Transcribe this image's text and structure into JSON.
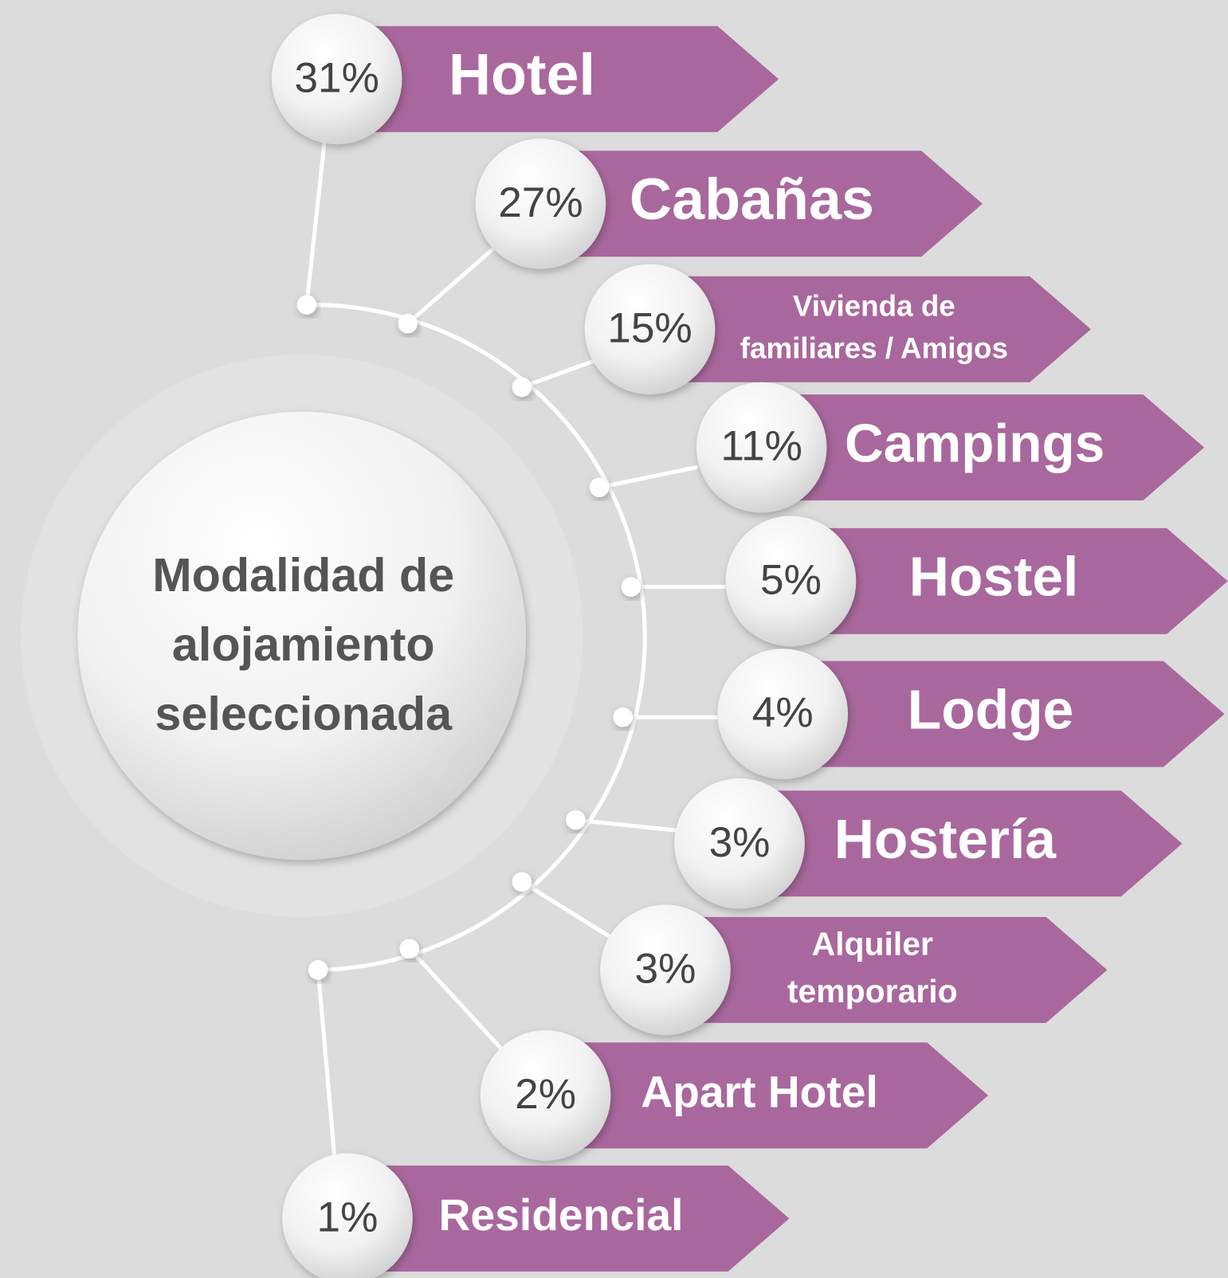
{
  "center": {
    "lines": [
      "Modalidad de",
      "alojamiento",
      "seleccionada"
    ]
  },
  "items": [
    {
      "percent": "31%",
      "label": [
        "Hotel"
      ]
    },
    {
      "percent": "27%",
      "label": [
        "Cabañas"
      ]
    },
    {
      "percent": "15%",
      "label": [
        "Vivienda de",
        "familiares / Amigos"
      ]
    },
    {
      "percent": "11%",
      "label": [
        "Campings"
      ]
    },
    {
      "percent": "5%",
      "label": [
        "Hostel"
      ]
    },
    {
      "percent": "4%",
      "label": [
        "Lodge"
      ]
    },
    {
      "percent": "3%",
      "label": [
        "Hostería"
      ]
    },
    {
      "percent": "3%",
      "label": [
        "Alquiler",
        "temporario"
      ]
    },
    {
      "percent": "2%",
      "label": [
        "Apart Hotel"
      ]
    },
    {
      "percent": "1%",
      "label": [
        "Residencial"
      ]
    }
  ]
}
